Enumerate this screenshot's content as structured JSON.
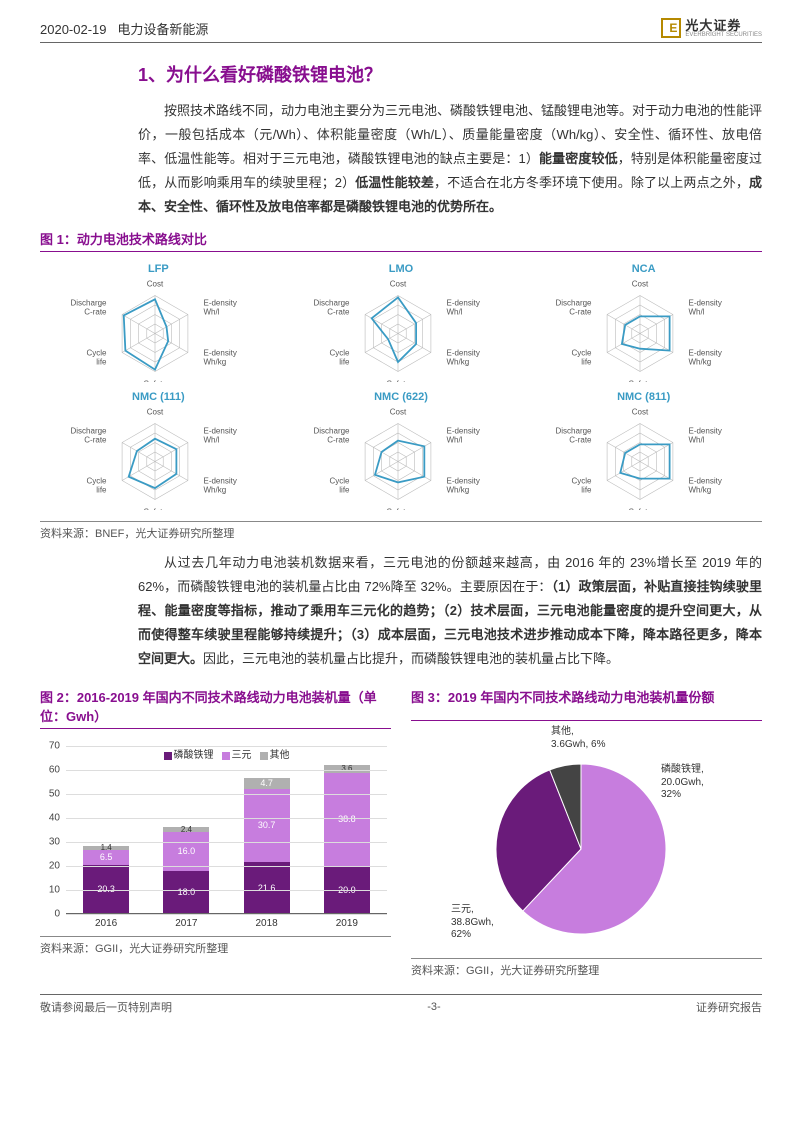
{
  "header": {
    "date": "2020-02-19",
    "sector": "电力设备新能源",
    "brand_cn": "光大证券",
    "brand_en": "EVERBRIGHT SECURITIES"
  },
  "section": {
    "h1": "1、为什么看好磷酸铁锂电池？",
    "p1_a": "按照技术路线不同，动力电池主要分为三元电池、磷酸铁锂电池、锰酸锂电池等。对于动力电池的性能评价，一般包括成本（元/Wh）、体积能量密度（Wh/L）、质量能量密度（Wh/kg）、安全性、循环性、放电倍率、低温性能等。相对于三元电池，磷酸铁锂电池的缺点主要是：1）",
    "p1_b": "能量密度较低",
    "p1_c": "，特别是体积能量密度过低，从而影响乘用车的续驶里程；2）",
    "p1_d": "低温性能较差",
    "p1_e": "，不适合在北方冬季环境下使用。除了以上两点之外，",
    "p1_f": "成本、安全性、循环性及放电倍率都是磷酸铁锂电池的优势所在。"
  },
  "fig1": {
    "title": "图 1：动力电池技术路线对比",
    "source": "资料来源：BNEF，光大证券研究所整理",
    "axes": [
      "Cost",
      "E-density Wh/l",
      "E-density Wh/kg",
      "Safety",
      "Cycle life",
      "Discharge C-rate"
    ],
    "axis_color": "#bbb",
    "line_color": "#3a9bc4",
    "charts": [
      {
        "name": "LFP",
        "v": [
          0.9,
          0.35,
          0.4,
          0.95,
          0.9,
          0.95
        ]
      },
      {
        "name": "LMO",
        "v": [
          0.95,
          0.55,
          0.55,
          0.75,
          0.3,
          0.8
        ]
      },
      {
        "name": "NCA",
        "v": [
          0.45,
          0.9,
          0.9,
          0.4,
          0.55,
          0.45
        ]
      },
      {
        "name": "NMC (111)",
        "v": [
          0.6,
          0.65,
          0.65,
          0.7,
          0.8,
          0.55
        ]
      },
      {
        "name": "NMC (622)",
        "v": [
          0.55,
          0.8,
          0.8,
          0.55,
          0.7,
          0.5
        ]
      },
      {
        "name": "NMC (811)",
        "v": [
          0.45,
          0.9,
          0.9,
          0.45,
          0.6,
          0.45
        ]
      }
    ]
  },
  "p2": {
    "a": "从过去几年动力电池装机数据来看，三元电池的份额越来越高，由 2016 年的 23%增长至 2019 年的 62%，而磷酸铁锂电池的装机量占比由 72%降至 32%。主要原因在于：",
    "b": "（1）政策层面，补贴直接挂钩续驶里程、能量密度等指标，推动了乘用车三元化的趋势；（2）技术层面，三元电池能量密度的提升空间更大，从而使得整车续驶里程能够持续提升；（3）成本层面，三元电池技术进步推动成本下降，降本路径更多，降本空间更大。",
    "c": "因此，三元电池的装机量占比提升，而磷酸铁锂电池的装机量占比下降。"
  },
  "fig2": {
    "title": "图 2：2016-2019 年国内不同技术路线动力电池装机量（单位：Gwh）",
    "source": "资料来源：GGII，光大证券研究所整理",
    "legend": [
      {
        "label": "磷酸铁锂",
        "color": "#6a1b7a"
      },
      {
        "label": "三元",
        "color": "#c77dde"
      },
      {
        "label": "其他",
        "color": "#b0b0b0"
      }
    ],
    "ymax": 70,
    "yticks": [
      0,
      10,
      20,
      30,
      40,
      50,
      60,
      70
    ],
    "years": [
      "2016",
      "2017",
      "2018",
      "2019"
    ],
    "stacks": [
      [
        {
          "v": 20.3,
          "c": "#6a1b7a",
          "t": "20.3"
        },
        {
          "v": 6.5,
          "c": "#c77dde",
          "t": "6.5"
        },
        {
          "v": 1.4,
          "c": "#b0b0b0",
          "t": "1.4"
        }
      ],
      [
        {
          "v": 18.0,
          "c": "#6a1b7a",
          "t": "18.0"
        },
        {
          "v": 16.0,
          "c": "#c77dde",
          "t": "16.0"
        },
        {
          "v": 2.4,
          "c": "#b0b0b0",
          "t": "2.4"
        }
      ],
      [
        {
          "v": 21.6,
          "c": "#6a1b7a",
          "t": "21.6"
        },
        {
          "v": 30.7,
          "c": "#c77dde",
          "t": "30.7"
        },
        {
          "v": 4.7,
          "c": "#b0b0b0",
          "t": "4.7"
        }
      ],
      [
        {
          "v": 20.0,
          "c": "#6a1b7a",
          "t": "20.0"
        },
        {
          "v": 38.8,
          "c": "#c77dde",
          "t": "38.8"
        },
        {
          "v": 3.6,
          "c": "#b0b0b0",
          "t": "3.6"
        }
      ]
    ]
  },
  "fig3": {
    "title": "图 3：2019 年国内不同技术路线动力电池装机量份额",
    "source": "资料来源：GGII，光大证券研究所整理",
    "slices": [
      {
        "label": "三元,\n38.8Gwh,\n62%",
        "value": 62,
        "color": "#c77dde"
      },
      {
        "label": "磷酸铁锂,\n20.0Gwh,\n32%",
        "value": 32,
        "color": "#6a1b7a"
      },
      {
        "label": "其他,\n3.6Gwh, 6%",
        "value": 6,
        "color": "#444444"
      }
    ]
  },
  "footer": {
    "left": "敬请参阅最后一页特别声明",
    "center": "-3-",
    "right": "证券研究报告"
  }
}
